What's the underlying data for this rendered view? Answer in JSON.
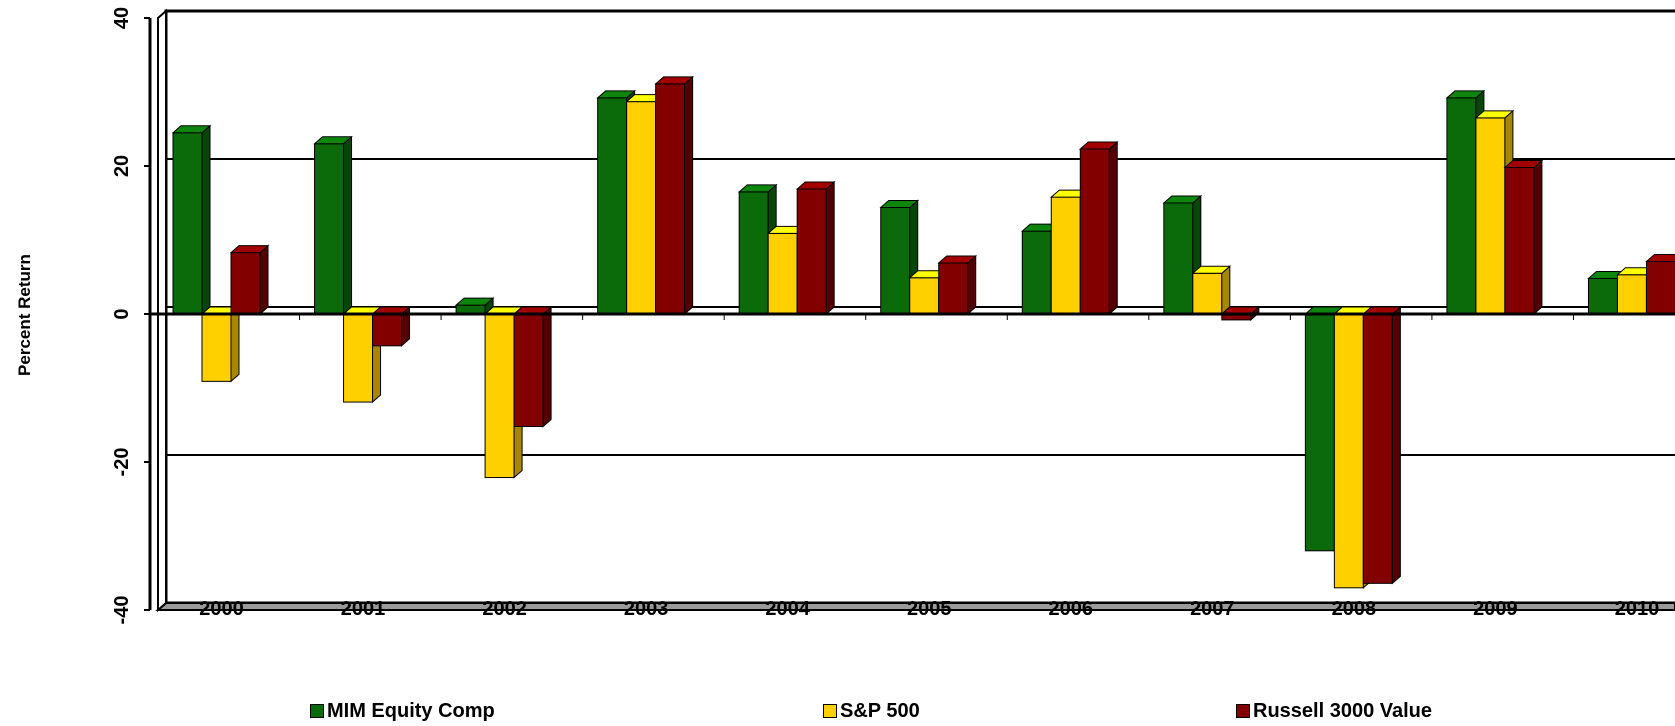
{
  "chart_data": {
    "type": "bar",
    "ylabel": "Percent Return",
    "xlabel": "",
    "ylim": [
      -40,
      40
    ],
    "yticks": [
      "-40",
      "-20",
      "0",
      "20",
      "40"
    ],
    "grid": true,
    "legend_position": "bottom",
    "categories": [
      "2000",
      "2001",
      "2002",
      "2003",
      "2004",
      "2005",
      "2006",
      "2007",
      "2008",
      "2009",
      "2010"
    ],
    "series": [
      {
        "name": "MIM Equity Comp",
        "color": "#0b6b0b",
        "values": [
          24.5,
          23.0,
          1.2,
          29.2,
          16.5,
          14.4,
          11.2,
          15.0,
          -32.0,
          29.2,
          4.8
        ]
      },
      {
        "name": "S&P 500",
        "color": "#ffd000",
        "values": [
          -9.1,
          -11.9,
          -22.1,
          28.7,
          10.9,
          4.9,
          15.8,
          5.5,
          -37.0,
          26.5,
          5.3
        ]
      },
      {
        "name": "Russell 3000 Value",
        "color": "#820000",
        "values": [
          8.3,
          -4.3,
          -15.2,
          31.1,
          16.9,
          6.9,
          22.3,
          -0.8,
          -36.4,
          19.8,
          7.1
        ]
      }
    ]
  }
}
